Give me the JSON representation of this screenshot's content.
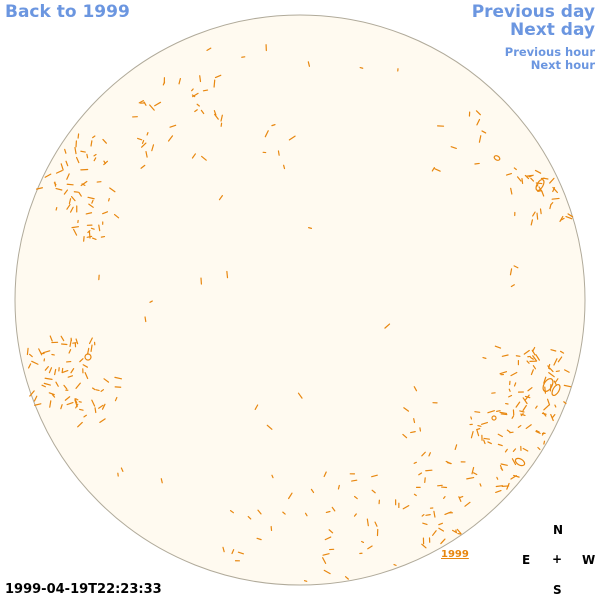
{
  "nav": {
    "back_label": "Back to 1999",
    "previous_day_label": "Previous day",
    "next_day_label": "Next day",
    "previous_hour_label": "Previous hour",
    "next_hour_label": "Next hour"
  },
  "timestamp": "1999-04-19T22:23:33",
  "compass": {
    "north": "N",
    "east": "E",
    "center": "+",
    "west": "W",
    "south": "S"
  },
  "year_label": "1999",
  "colors": {
    "disk_fill": "#fffaf0",
    "disk_stroke": "#b0aa9a",
    "contour": "#e8870f",
    "link": "#6b96e0"
  }
}
